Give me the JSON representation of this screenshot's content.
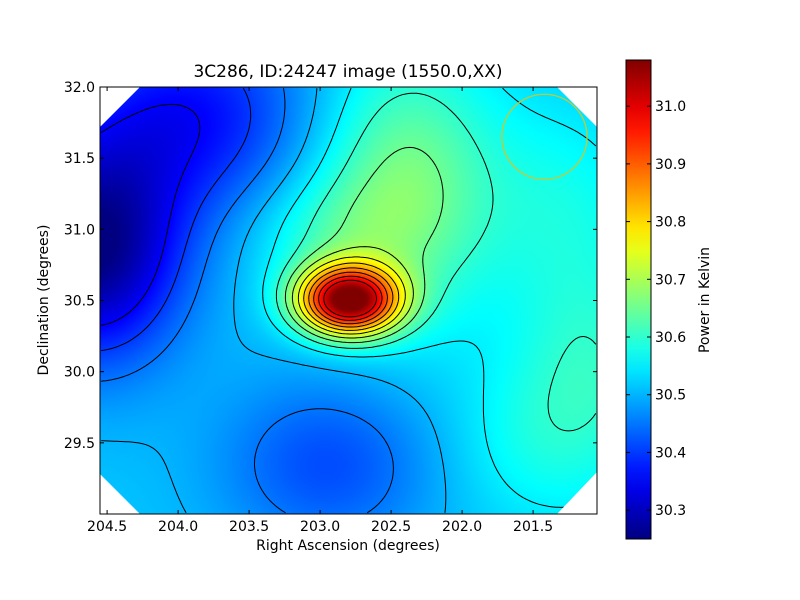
{
  "chart_data": {
    "type": "heatmap",
    "title": "3C286, ID:24247 image (1550.0,XX)",
    "xlabel": "Right Ascension (degrees)",
    "ylabel": "Declination (degrees)",
    "colorbar_label": "Power in Kelvin",
    "colormap": "jet",
    "x_axis_reversed": true,
    "xlim": [
      204.55,
      201.05
    ],
    "ylim": [
      29.0,
      32.0
    ],
    "x_ticks": [
      204.5,
      204.0,
      203.5,
      203.0,
      202.5,
      202.0,
      201.5
    ],
    "x_tick_labels": [
      "204.5",
      "204.0",
      "203.5",
      "203.0",
      "202.5",
      "202.0",
      "201.5"
    ],
    "y_ticks": [
      29.5,
      30.0,
      30.5,
      31.0,
      31.5,
      32.0
    ],
    "y_tick_labels": [
      "29.5",
      "30.0",
      "30.5",
      "31.0",
      "31.5",
      "32.0"
    ],
    "colorbar_range": [
      30.25,
      31.08
    ],
    "colorbar_ticks": [
      30.3,
      30.4,
      30.5,
      30.6,
      30.7,
      30.8,
      30.9,
      31.0
    ],
    "colorbar_tick_labels": [
      "30.3",
      "30.4",
      "30.5",
      "30.6",
      "30.7",
      "30.8",
      "30.9",
      "31.0"
    ],
    "features": [
      {
        "kind": "peak",
        "ra": 202.8,
        "dec": 30.5,
        "value": 31.07
      },
      {
        "kind": "minimum",
        "ra": 204.55,
        "dec": 30.85,
        "value": 30.26
      },
      {
        "kind": "minimum",
        "ra": 202.95,
        "dec": 29.4,
        "value": 30.38
      }
    ],
    "contour_levels": [
      30.35,
      30.4,
      30.45,
      30.5,
      30.55,
      30.6,
      30.65,
      30.7,
      30.75,
      30.8,
      30.85,
      30.9,
      30.95,
      31.0
    ],
    "beam_marker": {
      "ra": 201.42,
      "dec": 31.65,
      "radius_deg": 0.3,
      "color": "#c8c832"
    },
    "grid": false
  }
}
